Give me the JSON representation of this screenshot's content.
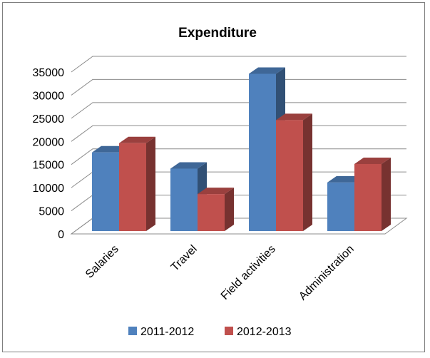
{
  "chart_data": {
    "type": "bar",
    "title": "Expenditure",
    "categories": [
      "Salaries",
      "Travel",
      "Field activities",
      "Administration"
    ],
    "series": [
      {
        "name": "2011-2012",
        "values": [
          17000,
          13500,
          34000,
          10500
        ],
        "color": "#4f81bd"
      },
      {
        "name": "2012-2013",
        "values": [
          19000,
          8000,
          24000,
          14500
        ],
        "color": "#c0504d"
      }
    ],
    "ylim": [
      0,
      35000
    ],
    "yticks": [
      "0",
      "5000",
      "10000",
      "15000",
      "20000",
      "25000",
      "30000",
      "35000"
    ],
    "grid": true,
    "legend_position": "bottom"
  }
}
